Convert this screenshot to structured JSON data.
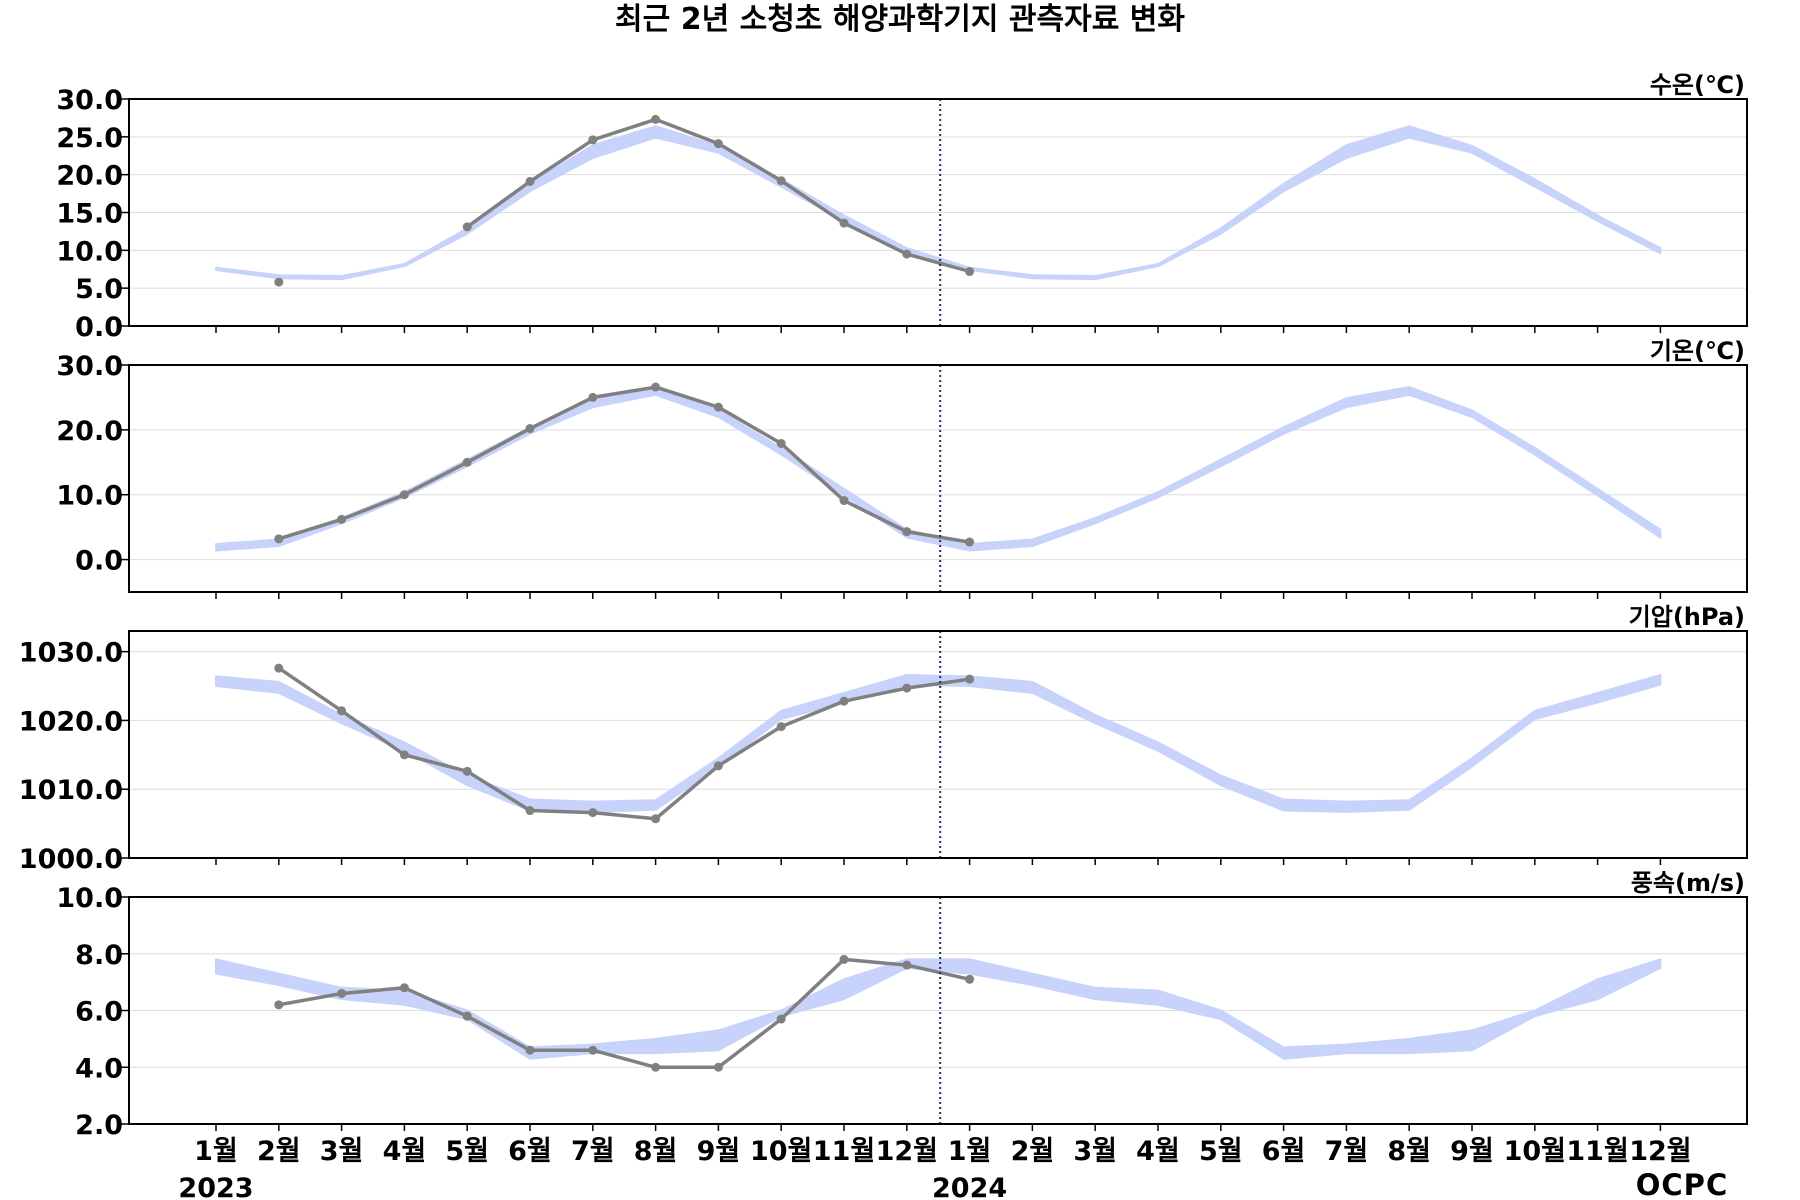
{
  "title": "최근 2년 소청초 해양과학기지 관측자료 변화",
  "logo_text": "OCPC",
  "x_month_labels": [
    "1월",
    "2월",
    "3월",
    "4월",
    "5월",
    "6월",
    "7월",
    "8월",
    "9월",
    "10월",
    "11월",
    "12월",
    "1월",
    "2월",
    "3월",
    "4월",
    "5월",
    "6월",
    "7월",
    "8월",
    "9월",
    "10월",
    "11월",
    "12월"
  ],
  "year_labels": [
    {
      "label": "2023",
      "month_index": 0
    },
    {
      "label": "2024",
      "month_index": 12
    }
  ],
  "colors": {
    "band": "#c8d3fb",
    "observed": "#808080",
    "divider": "#1f2d5a",
    "grid": "#dddddd"
  },
  "chart_data": [
    {
      "type": "line",
      "unit_label": "수온(℃)",
      "ylim": [
        0,
        30
      ],
      "yticks": [
        "30.0",
        "25.0",
        "20.0",
        "15.0",
        "10.0",
        "5.0",
        "0.0"
      ],
      "climatology_low": [
        7.4,
        6.3,
        6.2,
        7.9,
        12.2,
        17.8,
        22.2,
        24.9,
        22.9,
        18.4,
        13.9,
        9.6,
        7.4,
        6.3,
        6.2,
        7.9,
        12.2,
        17.8,
        22.2,
        24.9,
        22.9,
        18.4,
        13.9,
        9.6
      ],
      "climatology_high": [
        7.7,
        6.7,
        6.6,
        8.2,
        12.9,
        18.8,
        23.9,
        26.4,
        23.8,
        19.4,
        14.6,
        10.3,
        7.7,
        6.7,
        6.6,
        8.2,
        12.9,
        18.8,
        23.9,
        26.4,
        23.8,
        19.4,
        14.6,
        10.3
      ],
      "observed": [
        null,
        5.8,
        null,
        null,
        13.1,
        19.1,
        24.6,
        27.3,
        24.1,
        19.2,
        13.6,
        9.5,
        7.2,
        null,
        null,
        null,
        null,
        null,
        null,
        null,
        null,
        null,
        null,
        null
      ]
    },
    {
      "type": "line",
      "unit_label": "기온(℃)",
      "ylim": [
        -5,
        30
      ],
      "yticks": [
        "30.0",
        "20.0",
        "10.0",
        "0.0"
      ],
      "climatology_low": [
        1.4,
        2.1,
        5.6,
        9.6,
        14.4,
        19.4,
        23.5,
        25.4,
        22.0,
        16.2,
        9.9,
        3.4,
        1.4,
        2.1,
        5.6,
        9.6,
        14.4,
        19.4,
        23.5,
        25.4,
        22.0,
        16.2,
        9.9,
        3.4
      ],
      "climatology_high": [
        2.4,
        3.1,
        6.4,
        10.4,
        15.4,
        20.4,
        24.9,
        26.6,
        23.0,
        17.2,
        10.9,
        4.6,
        2.4,
        3.1,
        6.4,
        10.4,
        15.4,
        20.4,
        24.9,
        26.6,
        23.0,
        17.2,
        10.9,
        4.6
      ],
      "observed": [
        null,
        3.2,
        6.2,
        10.0,
        15.0,
        20.2,
        25.0,
        26.6,
        23.5,
        17.9,
        9.1,
        4.3,
        2.7,
        null,
        null,
        null,
        null,
        null,
        null,
        null,
        null,
        null,
        null,
        null
      ]
    },
    {
      "type": "line",
      "unit_label": "기압(hPa)",
      "ylim": [
        1000,
        1033
      ],
      "yticks": [
        "1030.0",
        "1020.0",
        "1010.0",
        "1000.0"
      ],
      "climatology_low": [
        1025.0,
        1024.0,
        1019.6,
        1015.6,
        1010.6,
        1006.9,
        1006.7,
        1007.0,
        1013.3,
        1020.2,
        1022.6,
        1025.2,
        1025.0,
        1024.0,
        1019.6,
        1015.6,
        1010.6,
        1006.9,
        1006.7,
        1007.0,
        1013.3,
        1020.2,
        1022.6,
        1025.2
      ],
      "climatology_high": [
        1026.4,
        1025.6,
        1020.8,
        1016.8,
        1012.0,
        1008.5,
        1008.2,
        1008.4,
        1014.5,
        1021.4,
        1024.0,
        1026.6,
        1026.4,
        1025.6,
        1020.8,
        1016.8,
        1012.0,
        1008.5,
        1008.2,
        1008.4,
        1014.5,
        1021.4,
        1024.0,
        1026.6
      ],
      "observed": [
        null,
        1027.6,
        1021.4,
        1015.0,
        1012.6,
        1006.9,
        1006.6,
        1005.7,
        1013.4,
        1019.1,
        1022.8,
        1024.7,
        1026.0,
        null,
        null,
        null,
        null,
        null,
        null,
        null,
        null,
        null,
        null,
        null
      ]
    },
    {
      "type": "line",
      "unit_label": "풍속(m/s)",
      "ylim": [
        2,
        10
      ],
      "yticks": [
        "10.0",
        "8.0",
        "6.0",
        "4.0",
        "2.0"
      ],
      "climatology_low": [
        7.3,
        6.9,
        6.4,
        6.2,
        5.7,
        4.3,
        4.5,
        4.5,
        4.6,
        5.8,
        6.4,
        7.5,
        7.3,
        6.9,
        6.4,
        6.2,
        5.7,
        4.3,
        4.5,
        4.5,
        4.6,
        5.8,
        6.4,
        7.5
      ],
      "climatology_high": [
        7.8,
        7.3,
        6.8,
        6.7,
        6.0,
        4.7,
        4.8,
        5.0,
        5.3,
        6.0,
        7.1,
        7.8,
        7.8,
        7.3,
        6.8,
        6.7,
        6.0,
        4.7,
        4.8,
        5.0,
        5.3,
        6.0,
        7.1,
        7.8
      ],
      "observed": [
        null,
        6.2,
        6.6,
        6.8,
        5.8,
        4.6,
        4.6,
        4.0,
        4.0,
        5.7,
        7.8,
        7.6,
        7.1,
        null,
        null,
        null,
        null,
        null,
        null,
        null,
        null,
        null,
        null,
        null
      ]
    }
  ]
}
